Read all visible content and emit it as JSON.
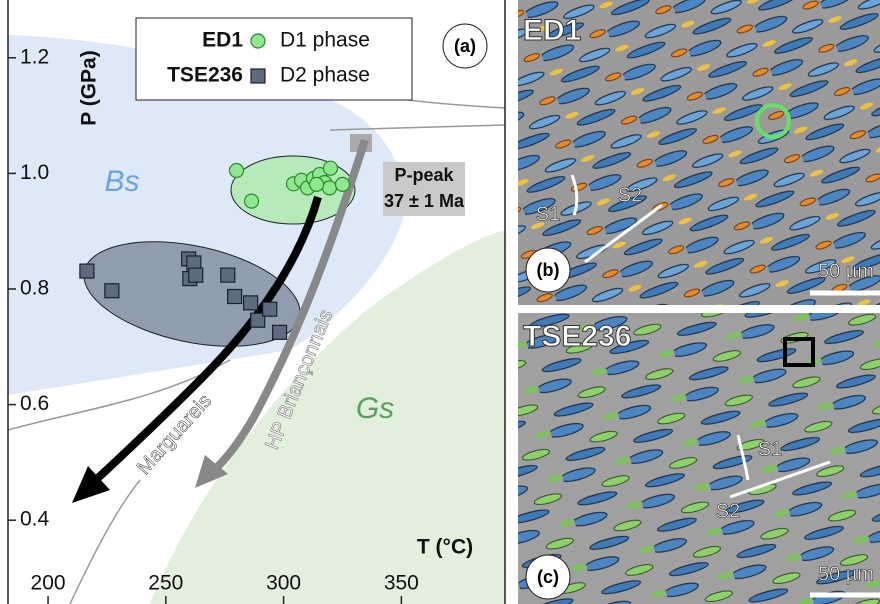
{
  "chart_data": {
    "type": "scatter",
    "panel_label": "(a)",
    "xlabel": "T (°C)",
    "ylabel": "P (GPa)",
    "xlim": [
      183,
      394
    ],
    "ylim": [
      0.255,
      1.3
    ],
    "xticks": [
      200,
      250,
      300,
      350
    ],
    "yticks": [
      0.4,
      0.6,
      0.8,
      {
        "value": 1,
        "label": "1.0"
      },
      1.2
    ],
    "series": [
      {
        "name": "D1 phase",
        "sample": "ED1",
        "marker": "circle",
        "color": "#8fe88f",
        "x": [
          280,
          286.4,
          304.2,
          307.6,
          310.2,
          312.7,
          315.3,
          317.4,
          319.9,
          319.5,
          325,
          314
        ],
        "y": [
          1.005,
          0.952,
          0.982,
          0.988,
          0.975,
          0.991,
          0.998,
          0.984,
          1.009,
          0.975,
          0.981,
          0.981
        ]
      },
      {
        "name": "D2 phase",
        "sample": "TSE236",
        "marker": "square",
        "color": "#5d6a7f",
        "x": [
          216.5,
          227.1,
          259.7,
          261.9,
          260.2,
          262.7,
          276.3,
          279.2,
          286,
          289,
          294.1,
          298.3
        ],
        "y": [
          0.831,
          0.797,
          0.852,
          0.845,
          0.818,
          0.824,
          0.824,
          0.787,
          0.776,
          0.746,
          0.765,
          0.725
        ]
      }
    ],
    "annotations": {
      "facies_1": "Bs",
      "facies_2": "Gs",
      "peak": "P-peak",
      "age": "37 ± 1 Ma",
      "path_1": "Marguareis",
      "path_2": "HP Briançonnais"
    }
  },
  "micrographs": [
    {
      "sample": "ED1",
      "label": "(b)",
      "s1": "S1",
      "s2": "S2",
      "scale": "50 µm"
    },
    {
      "sample": "TSE236",
      "label": "(c)",
      "s1": "S1",
      "s2": "S2",
      "scale": "50 µm"
    }
  ]
}
